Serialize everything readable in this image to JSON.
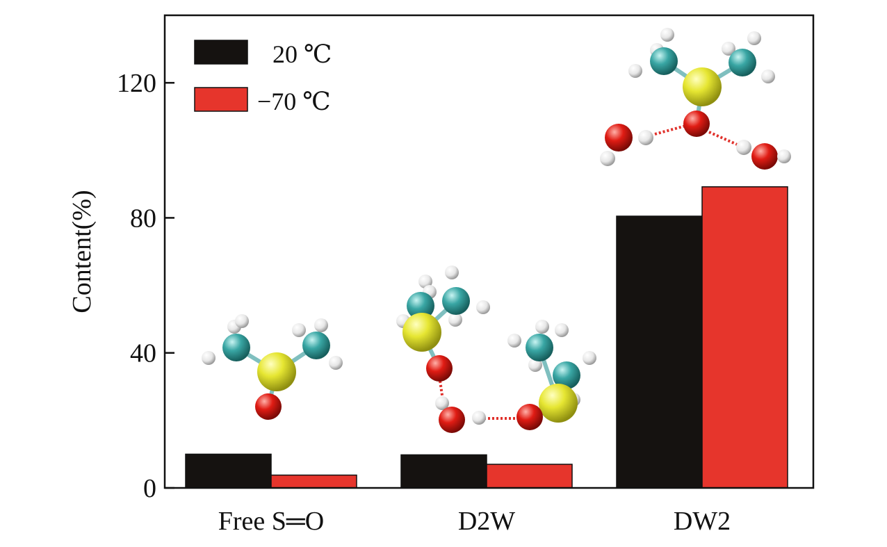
{
  "chart_data": {
    "type": "bar",
    "categories": [
      "Free S═O",
      "D2W",
      "DW2"
    ],
    "series": [
      {
        "name": "20 ℃",
        "color": "#151210",
        "values": [
          10.0,
          9.8,
          80.5
        ]
      },
      {
        "name": "−70 ℃",
        "color": "#e6352c",
        "values": [
          3.8,
          7.0,
          89.2
        ]
      }
    ],
    "xlabel": "",
    "ylabel": "Content(%)",
    "ylim": [
      0,
      140
    ],
    "yticks": [
      0,
      40,
      80,
      120
    ],
    "grid": false,
    "legend_position": "top-left",
    "insets": [
      {
        "category": "Free S═O",
        "description_icon": "dmso-molecule"
      },
      {
        "category": "D2W",
        "description_icon": "dmso-dimer-water-cluster"
      },
      {
        "category": "DW2",
        "description_icon": "dmso-two-water-cluster"
      }
    ]
  }
}
